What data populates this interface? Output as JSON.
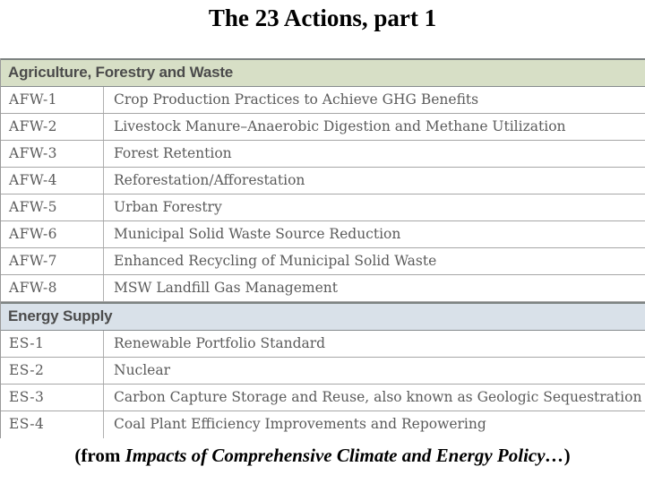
{
  "page": {
    "title": "The 23 Actions, part 1",
    "caption": {
      "prefix": "(from ",
      "source_italic": "Impacts of Comprehensive Climate and Energy Policy…",
      "suffix": ")"
    }
  },
  "colors": {
    "agriculture_section_bg": "#d7dfc6",
    "energy_section_bg": "#d9e1e9",
    "section_border": "#7d8382",
    "row_divider": "#a6a6a6",
    "row_text": "#5b5b5b",
    "section_header_text": "#4b4b4b",
    "title_text": "#000000"
  },
  "table": {
    "sections": [
      {
        "header": "Agriculture, Forestry and Waste",
        "rows": [
          {
            "code": "AFW-1",
            "description": "Crop Production Practices to Achieve GHG Benefits"
          },
          {
            "code": "AFW-2",
            "description": "Livestock Manure–Anaerobic Digestion and Methane Utilization"
          },
          {
            "code": "AFW-3",
            "description": "Forest Retention"
          },
          {
            "code": "AFW-4",
            "description": "Reforestation/Afforestation"
          },
          {
            "code": "AFW-5",
            "description": "Urban Forestry"
          },
          {
            "code": "AFW-6",
            "description": "Municipal Solid Waste Source Reduction"
          },
          {
            "code": "AFW-7",
            "description": "Enhanced Recycling of Municipal Solid Waste"
          },
          {
            "code": "AFW-8",
            "description": "MSW Landfill Gas Management"
          }
        ]
      },
      {
        "header": "Energy Supply",
        "rows": [
          {
            "code": "ES-1",
            "description": "Renewable Portfolio Standard"
          },
          {
            "code": "ES-2",
            "description": "Nuclear"
          },
          {
            "code": "ES-3",
            "description": "Carbon Capture Storage and Reuse, also known as Geologic Sequestration"
          },
          {
            "code": "ES-4",
            "description": "Coal Plant Efficiency Improvements and Repowering"
          }
        ]
      }
    ]
  }
}
